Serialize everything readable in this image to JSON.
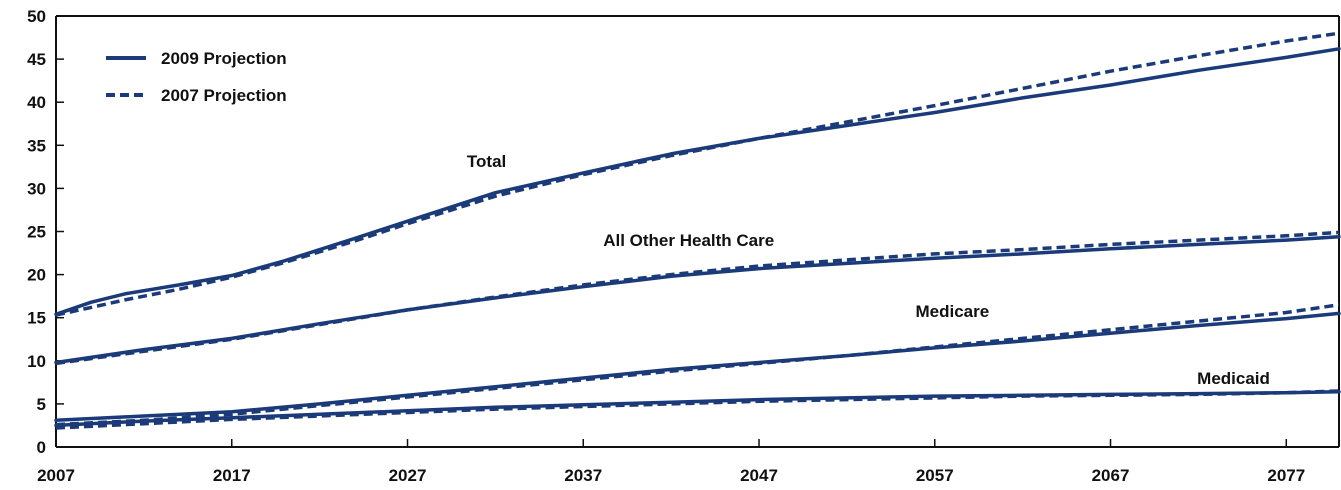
{
  "chart_data": {
    "type": "line",
    "title": "",
    "xlabel": "",
    "ylabel": "",
    "xlim": [
      2007,
      2080
    ],
    "ylim": [
      0,
      50
    ],
    "x_ticks": [
      2007,
      2017,
      2027,
      2037,
      2047,
      2057,
      2067,
      2077
    ],
    "y_ticks": [
      0,
      5,
      10,
      15,
      20,
      25,
      30,
      35,
      40,
      45,
      50
    ],
    "grid": false,
    "legend_position": "top-left",
    "colors": {
      "line": "#1b3a7a",
      "axis": "#111111",
      "text": "#111111"
    },
    "legend": [
      {
        "label": "2009 Projection",
        "style": "solid"
      },
      {
        "label": "2007 Projection",
        "style": "dashed"
      }
    ],
    "series_labels": [
      {
        "text": "Total",
        "x": 2031.5,
        "y": 32.5
      },
      {
        "text": "All Other Health Care",
        "x": 2043,
        "y": 23.3
      },
      {
        "text": "Medicare",
        "x": 2058,
        "y": 15.1
      },
      {
        "text": "Medicaid",
        "x": 2074,
        "y": 7.3
      }
    ],
    "series": [
      {
        "group": "Total",
        "projection": "2009 Projection",
        "style": "solid",
        "x": [
          2007,
          2009,
          2011,
          2014,
          2017,
          2020,
          2024,
          2027,
          2032,
          2037,
          2042,
          2047,
          2052,
          2057,
          2062,
          2067,
          2072,
          2077,
          2080
        ],
        "y": [
          15.4,
          16.8,
          17.8,
          18.8,
          19.9,
          21.6,
          24.2,
          26.2,
          29.5,
          31.8,
          34.0,
          35.8,
          37.3,
          38.8,
          40.5,
          42.0,
          43.7,
          45.2,
          46.2
        ]
      },
      {
        "group": "Total",
        "projection": "2007 Projection",
        "style": "dashed",
        "x": [
          2007,
          2009,
          2011,
          2014,
          2017,
          2020,
          2024,
          2027,
          2032,
          2037,
          2042,
          2047,
          2052,
          2057,
          2062,
          2067,
          2072,
          2077,
          2080
        ],
        "y": [
          15.3,
          16.2,
          17.1,
          18.3,
          19.7,
          21.4,
          23.9,
          25.9,
          29.1,
          31.6,
          33.8,
          35.8,
          37.7,
          39.6,
          41.6,
          43.6,
          45.4,
          47.1,
          48.0
        ]
      },
      {
        "group": "All Other Health Care",
        "projection": "2009 Projection",
        "style": "solid",
        "x": [
          2007,
          2012,
          2017,
          2022,
          2027,
          2032,
          2037,
          2042,
          2047,
          2052,
          2057,
          2062,
          2067,
          2072,
          2077,
          2080
        ],
        "y": [
          9.8,
          11.3,
          12.6,
          14.3,
          15.9,
          17.3,
          18.6,
          19.8,
          20.7,
          21.3,
          21.9,
          22.4,
          23.0,
          23.5,
          24.0,
          24.4
        ]
      },
      {
        "group": "All Other Health Care",
        "projection": "2007 Projection",
        "style": "dashed",
        "x": [
          2007,
          2012,
          2017,
          2022,
          2027,
          2032,
          2037,
          2042,
          2047,
          2052,
          2057,
          2062,
          2067,
          2072,
          2077,
          2080
        ],
        "y": [
          9.7,
          11.1,
          12.5,
          14.2,
          15.9,
          17.4,
          18.8,
          20.0,
          21.0,
          21.7,
          22.4,
          22.9,
          23.5,
          24.0,
          24.5,
          24.9
        ]
      },
      {
        "group": "Medicare",
        "projection": "2009 Projection",
        "style": "solid",
        "x": [
          2007,
          2012,
          2017,
          2022,
          2027,
          2032,
          2037,
          2042,
          2047,
          2052,
          2057,
          2062,
          2067,
          2072,
          2077,
          2080
        ],
        "y": [
          3.1,
          3.6,
          4.1,
          5.0,
          6.0,
          7.0,
          8.0,
          9.0,
          9.8,
          10.6,
          11.5,
          12.3,
          13.2,
          14.1,
          14.9,
          15.5
        ]
      },
      {
        "group": "Medicare",
        "projection": "2007 Projection",
        "style": "dashed",
        "x": [
          2007,
          2012,
          2017,
          2022,
          2027,
          2032,
          2037,
          2042,
          2047,
          2052,
          2057,
          2062,
          2067,
          2072,
          2077,
          2080
        ],
        "y": [
          2.6,
          3.1,
          3.8,
          4.8,
          5.8,
          6.8,
          7.8,
          8.8,
          9.7,
          10.6,
          11.6,
          12.6,
          13.6,
          14.6,
          15.6,
          16.5
        ]
      },
      {
        "group": "Medicaid",
        "projection": "2009 Projection",
        "style": "solid",
        "x": [
          2007,
          2012,
          2017,
          2022,
          2027,
          2032,
          2037,
          2042,
          2047,
          2052,
          2057,
          2062,
          2067,
          2072,
          2077,
          2080
        ],
        "y": [
          2.5,
          3.0,
          3.4,
          3.8,
          4.2,
          4.6,
          4.9,
          5.2,
          5.5,
          5.7,
          5.9,
          6.0,
          6.1,
          6.2,
          6.3,
          6.4
        ]
      },
      {
        "group": "Medicaid",
        "projection": "2007 Projection",
        "style": "dashed",
        "x": [
          2007,
          2012,
          2017,
          2022,
          2027,
          2032,
          2037,
          2042,
          2047,
          2052,
          2057,
          2062,
          2067,
          2072,
          2077,
          2080
        ],
        "y": [
          2.2,
          2.7,
          3.2,
          3.6,
          4.0,
          4.4,
          4.7,
          5.0,
          5.3,
          5.5,
          5.7,
          5.9,
          6.0,
          6.1,
          6.3,
          6.5
        ]
      }
    ]
  }
}
